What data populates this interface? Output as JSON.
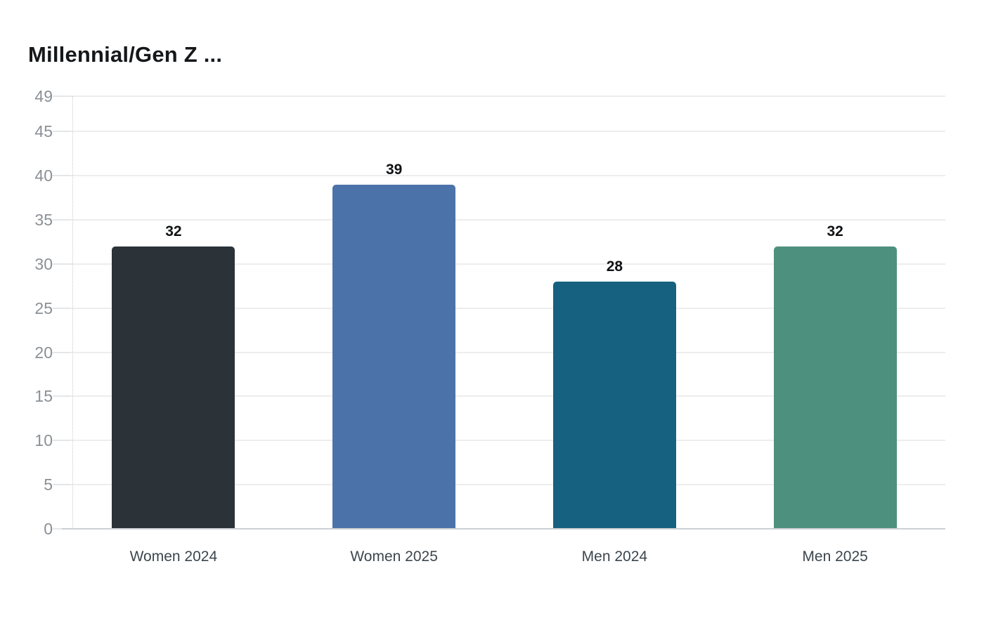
{
  "chart_data": {
    "type": "bar",
    "title": "Millennial/Gen Z ...",
    "categories": [
      "Women 2024",
      "Women 2025",
      "Men 2024",
      "Men 2025"
    ],
    "values": [
      32,
      39,
      28,
      32
    ],
    "bar_colors": [
      "#2b3339",
      "#4c73a9",
      "#16617f",
      "#4e907e"
    ],
    "yticks": [
      0,
      5,
      10,
      15,
      20,
      25,
      30,
      35,
      40,
      45,
      49
    ],
    "ylim": [
      0,
      49
    ],
    "xlabel": "",
    "ylabel": "",
    "grid": "horizontal",
    "legend": "none",
    "value_labels": true
  },
  "colors": {
    "background": "#ffffff",
    "title_text": "#15181b",
    "ytick_text": "#8a9096",
    "xtick_text": "#3c464e",
    "value_label_text": "#101214",
    "gridline": "#ededee",
    "axis_line": "#cdd0d3",
    "dotted_axis_line": "#c8cbce"
  }
}
